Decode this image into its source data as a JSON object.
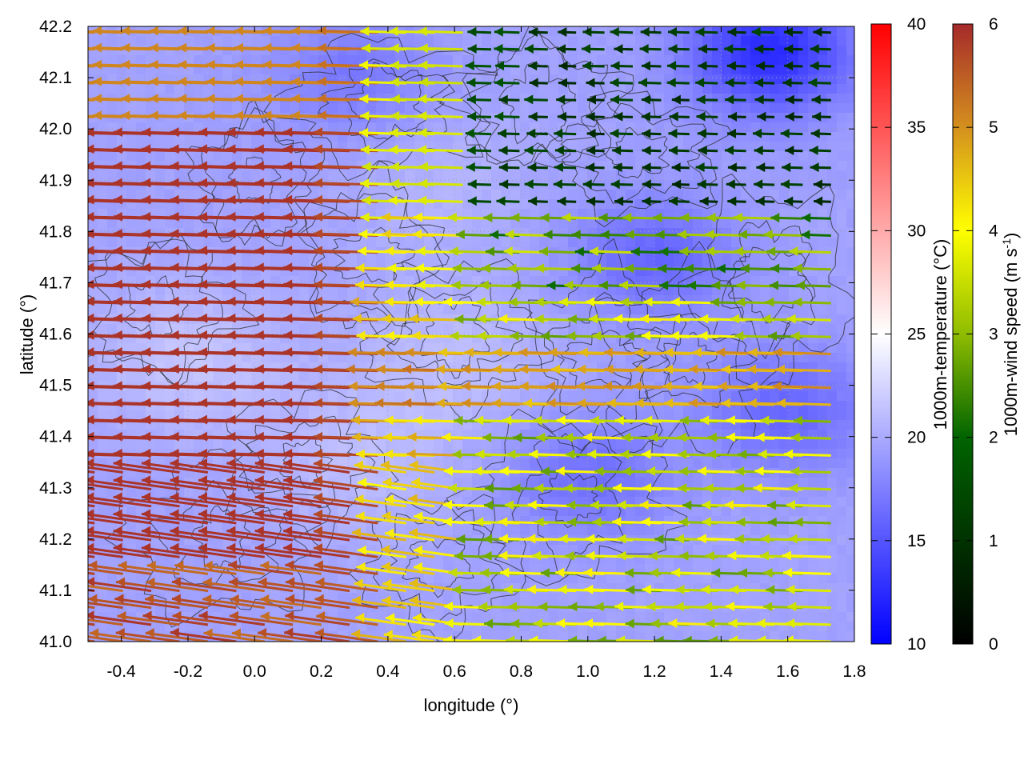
{
  "chart_data": {
    "type": "heatmap",
    "title": "",
    "xlabel": "longitude (°)",
    "ylabel": "latitude (°)",
    "xlim": [
      -0.5,
      1.8
    ],
    "ylim": [
      41.0,
      42.2
    ],
    "x_ticks": [
      "-0.4",
      "-0.2",
      "0.0",
      "0.2",
      "0.4",
      "0.6",
      "0.8",
      "1.0",
      "1.2",
      "1.4",
      "1.6",
      "1.8"
    ],
    "x_tick_values": [
      -0.4,
      -0.2,
      0.0,
      0.2,
      0.4,
      0.6,
      0.8,
      1.0,
      1.2,
      1.4,
      1.6,
      1.8
    ],
    "y_ticks": [
      "41.0",
      "41.1",
      "41.2",
      "41.3",
      "41.4",
      "41.5",
      "41.6",
      "41.7",
      "41.8",
      "41.9",
      "42.0",
      "42.1",
      "42.2"
    ],
    "y_tick_values": [
      41.0,
      41.1,
      41.2,
      41.3,
      41.4,
      41.5,
      41.6,
      41.7,
      41.8,
      41.9,
      42.0,
      42.1,
      42.2
    ],
    "grid": true,
    "temperature_colorbar": {
      "label": "1000m-temperature (°C)",
      "range": [
        10,
        40
      ],
      "ticks": [
        "10",
        "15",
        "20",
        "25",
        "30",
        "35",
        "40"
      ],
      "colors": [
        "#0000ff",
        "#ffffff",
        "#ff0000"
      ]
    },
    "wind_colorbar": {
      "label_main": "1000m-wind speed (m s",
      "label_sup": "-1",
      "label_end": ")",
      "range": [
        0,
        6
      ],
      "ticks": [
        "0",
        "1",
        "2",
        "3",
        "4",
        "5",
        "6"
      ],
      "colors": [
        "#000000",
        "#006400",
        "#8fbc00",
        "#ffff00",
        "#d4901e",
        "#a52a2a"
      ]
    },
    "temperature_field": {
      "description_values": "approx. 16-21 °C over domain; cooler (~13-15 °C) in north-east",
      "base": 19.5,
      "cold_spots": [
        {
          "lon": 1.55,
          "lat": 42.15,
          "t": 12.5
        },
        {
          "lon": 1.2,
          "lat": 41.75,
          "t": 16.0
        },
        {
          "lon": 1.0,
          "lat": 41.32,
          "t": 16.5
        },
        {
          "lon": 0.3,
          "lat": 42.1,
          "t": 17.0
        },
        {
          "lon": 1.6,
          "lat": 41.45,
          "t": 16.0
        }
      ],
      "warm_spots": [
        {
          "lon": -0.2,
          "lat": 41.55,
          "t": 21.5
        },
        {
          "lon": 0.3,
          "lat": 41.35,
          "t": 21.0
        },
        {
          "lon": 0.6,
          "lat": 41.55,
          "t": 21.0
        },
        {
          "lon": 0.55,
          "lat": 41.9,
          "t": 20.5
        }
      ]
    },
    "wind_field": {
      "direction": "mostly westward (arrows point toward west)",
      "speed_regions": [
        {
          "region": "west of 0.5° lon",
          "speed": 6.0
        },
        {
          "region": "north-east 0.6-1.8° lon, 41.85-42.2° lat",
          "speed": 1.0
        },
        {
          "region": "east 0.8-1.8° lon, 41.1-41.7° lat",
          "speed": 3.8
        },
        {
          "region": "band along 41.5° lat east",
          "speed": 5.0
        }
      ]
    }
  }
}
